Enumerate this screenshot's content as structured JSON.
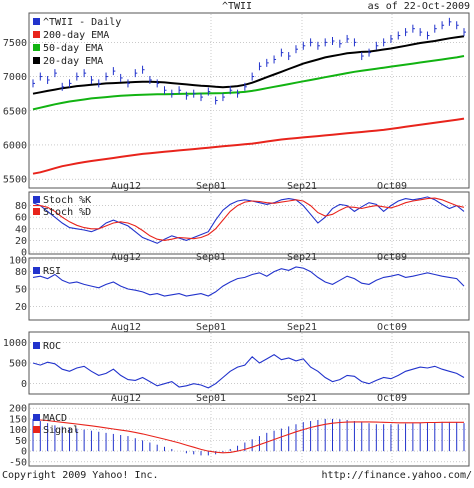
{
  "header": {
    "ticker": "^TWII",
    "as_of": "as of 22-Oct-2009"
  },
  "footer": {
    "copyright": "Copyright 2009 Yahoo! Inc.",
    "url": "http://finance.yahoo.com/"
  },
  "colors": {
    "price": "#2233cc",
    "ema200": "#e8241c",
    "ema50": "#12b312",
    "ema20": "#000000",
    "stoch_d": "#e8241c",
    "macd": "#2233cc",
    "signal": "#e8241c",
    "grid": "#aaaaaa",
    "label": "#333333"
  },
  "date_labels": [
    "Aug12",
    "Sep01",
    "Sep21",
    "Oct09"
  ],
  "chart_data": [
    {
      "type": "line",
      "panel": "price",
      "legend": [
        "^TWII - Daily",
        "200-day EMA",
        "50-day EMA",
        "20-day EMA"
      ],
      "yticks": [
        5500,
        6000,
        6500,
        7000,
        7500
      ],
      "ylim": [
        5400,
        7900
      ],
      "x_count": 60,
      "series": [
        {
          "name": "^TWII - Daily",
          "style": "bars",
          "values": [
            6900,
            7000,
            6950,
            7050,
            6850,
            6900,
            7000,
            7050,
            6950,
            6900,
            7000,
            7080,
            6980,
            6900,
            7050,
            7100,
            6950,
            6900,
            6800,
            6750,
            6800,
            6720,
            6750,
            6700,
            6780,
            6650,
            6700,
            6800,
            6750,
            6850,
            7000,
            7150,
            7200,
            7250,
            7350,
            7300,
            7400,
            7450,
            7500,
            7450,
            7500,
            7520,
            7480,
            7550,
            7500,
            7300,
            7350,
            7450,
            7500,
            7550,
            7600,
            7650,
            7700,
            7650,
            7600,
            7700,
            7750,
            7800,
            7750,
            7650
          ]
        },
        {
          "name": "200-day EMA",
          "values": [
            5580,
            5600,
            5630,
            5660,
            5690,
            5710,
            5730,
            5750,
            5765,
            5780,
            5795,
            5810,
            5825,
            5840,
            5855,
            5870,
            5880,
            5890,
            5900,
            5910,
            5920,
            5930,
            5940,
            5950,
            5960,
            5970,
            5980,
            5990,
            6000,
            6010,
            6020,
            6035,
            6050,
            6065,
            6080,
            6090,
            6100,
            6110,
            6120,
            6130,
            6140,
            6150,
            6160,
            6170,
            6180,
            6190,
            6200,
            6210,
            6220,
            6235,
            6250,
            6265,
            6280,
            6295,
            6310,
            6325,
            6340,
            6355,
            6370,
            6385
          ]
        },
        {
          "name": "50-day EMA",
          "values": [
            6520,
            6545,
            6570,
            6595,
            6615,
            6635,
            6650,
            6665,
            6680,
            6690,
            6700,
            6710,
            6720,
            6725,
            6730,
            6735,
            6738,
            6740,
            6742,
            6744,
            6746,
            6748,
            6750,
            6752,
            6754,
            6756,
            6758,
            6762,
            6768,
            6775,
            6790,
            6810,
            6830,
            6850,
            6870,
            6890,
            6910,
            6930,
            6950,
            6970,
            6990,
            7010,
            7030,
            7050,
            7070,
            7085,
            7100,
            7115,
            7130,
            7145,
            7160,
            7175,
            7190,
            7205,
            7220,
            7235,
            7250,
            7265,
            7280,
            7300
          ]
        },
        {
          "name": "20-day EMA",
          "values": [
            6750,
            6770,
            6790,
            6810,
            6830,
            6845,
            6860,
            6870,
            6880,
            6890,
            6900,
            6905,
            6910,
            6915,
            6920,
            6925,
            6925,
            6920,
            6915,
            6905,
            6895,
            6885,
            6875,
            6865,
            6860,
            6850,
            6845,
            6850,
            6860,
            6880,
            6910,
            6950,
            6990,
            7030,
            7070,
            7110,
            7150,
            7190,
            7220,
            7250,
            7280,
            7300,
            7320,
            7340,
            7350,
            7360,
            7365,
            7380,
            7395,
            7410,
            7430,
            7450,
            7470,
            7490,
            7505,
            7520,
            7540,
            7560,
            7575,
            7590
          ]
        }
      ]
    },
    {
      "type": "line",
      "panel": "stoch",
      "legend": [
        "Stoch %K",
        "Stoch %D"
      ],
      "yticks": [
        0,
        20,
        40,
        60,
        80
      ],
      "ylim": [
        0,
        100
      ],
      "series": [
        {
          "name": "Stoch %K",
          "values": [
            85,
            80,
            70,
            60,
            50,
            42,
            40,
            38,
            35,
            40,
            50,
            55,
            50,
            45,
            35,
            25,
            20,
            15,
            22,
            28,
            24,
            20,
            25,
            30,
            35,
            55,
            72,
            82,
            88,
            90,
            88,
            85,
            82,
            85,
            90,
            92,
            90,
            80,
            65,
            50,
            60,
            75,
            82,
            80,
            70,
            78,
            85,
            82,
            70,
            80,
            88,
            92,
            90,
            92,
            95,
            90,
            82,
            75,
            80,
            70
          ]
        },
        {
          "name": "Stoch %D",
          "values": [
            80,
            80,
            77,
            70,
            60,
            52,
            46,
            42,
            40,
            40,
            45,
            50,
            52,
            50,
            45,
            37,
            28,
            22,
            20,
            22,
            25,
            24,
            23,
            25,
            30,
            40,
            55,
            70,
            80,
            86,
            88,
            87,
            85,
            84,
            86,
            88,
            90,
            88,
            80,
            68,
            62,
            65,
            72,
            78,
            77,
            75,
            78,
            80,
            78,
            76,
            80,
            85,
            88,
            90,
            92,
            93,
            90,
            85,
            80,
            77
          ]
        }
      ]
    },
    {
      "type": "line",
      "panel": "rsi",
      "legend": [
        "RSI"
      ],
      "yticks": [
        20,
        50,
        80,
        100
      ],
      "ylim": [
        0,
        100
      ],
      "series": [
        {
          "name": "RSI",
          "values": [
            70,
            72,
            68,
            75,
            65,
            60,
            62,
            58,
            55,
            52,
            58,
            62,
            55,
            50,
            48,
            45,
            40,
            42,
            38,
            40,
            42,
            38,
            40,
            42,
            38,
            45,
            55,
            62,
            68,
            70,
            75,
            78,
            72,
            80,
            85,
            82,
            88,
            86,
            80,
            70,
            62,
            58,
            65,
            72,
            68,
            60,
            58,
            65,
            70,
            72,
            75,
            70,
            72,
            75,
            78,
            75,
            72,
            70,
            68,
            55
          ]
        }
      ]
    },
    {
      "type": "line",
      "panel": "roc",
      "legend": [
        "ROC"
      ],
      "yticks": [
        0,
        500,
        1000
      ],
      "ylim": [
        -200,
        1200
      ],
      "series": [
        {
          "name": "ROC",
          "values": [
            500,
            450,
            520,
            480,
            350,
            300,
            380,
            420,
            300,
            200,
            250,
            350,
            200,
            100,
            80,
            150,
            50,
            -50,
            0,
            50,
            -80,
            -50,
            0,
            -30,
            -100,
            0,
            150,
            300,
            400,
            450,
            650,
            500,
            600,
            700,
            580,
            620,
            550,
            600,
            400,
            300,
            150,
            50,
            100,
            200,
            180,
            50,
            0,
            80,
            150,
            120,
            200,
            300,
            350,
            400,
            380,
            420,
            350,
            300,
            250,
            150
          ]
        }
      ]
    },
    {
      "type": "bar",
      "panel": "macd",
      "legend": [
        "MACD",
        "Signal"
      ],
      "yticks": [
        -50,
        0,
        50,
        100,
        150,
        200
      ],
      "ylim": [
        -60,
        210
      ],
      "series": [
        {
          "name": "MACD",
          "style": "histogram",
          "values": [
            150,
            140,
            130,
            120,
            115,
            110,
            105,
            100,
            95,
            90,
            85,
            80,
            75,
            70,
            60,
            50,
            40,
            30,
            20,
            10,
            0,
            -10,
            -15,
            -20,
            -20,
            -15,
            -5,
            10,
            25,
            40,
            55,
            70,
            85,
            95,
            105,
            115,
            125,
            135,
            140,
            145,
            150,
            150,
            148,
            145,
            140,
            135,
            130,
            125,
            125,
            125,
            125,
            128,
            130,
            132,
            134,
            135,
            136,
            136,
            135,
            130
          ]
        },
        {
          "name": "Signal",
          "values": [
            145,
            145,
            142,
            138,
            134,
            130,
            126,
            122,
            118,
            113,
            108,
            103,
            98,
            93,
            87,
            80,
            72,
            64,
            56,
            47,
            38,
            28,
            18,
            8,
            0,
            -5,
            -8,
            -6,
            0,
            8,
            18,
            30,
            42,
            54,
            66,
            78,
            90,
            100,
            110,
            118,
            125,
            130,
            133,
            135,
            136,
            136,
            136,
            135,
            134,
            133,
            132,
            132,
            132,
            132,
            133,
            133,
            134,
            134,
            134,
            134
          ]
        }
      ]
    }
  ]
}
